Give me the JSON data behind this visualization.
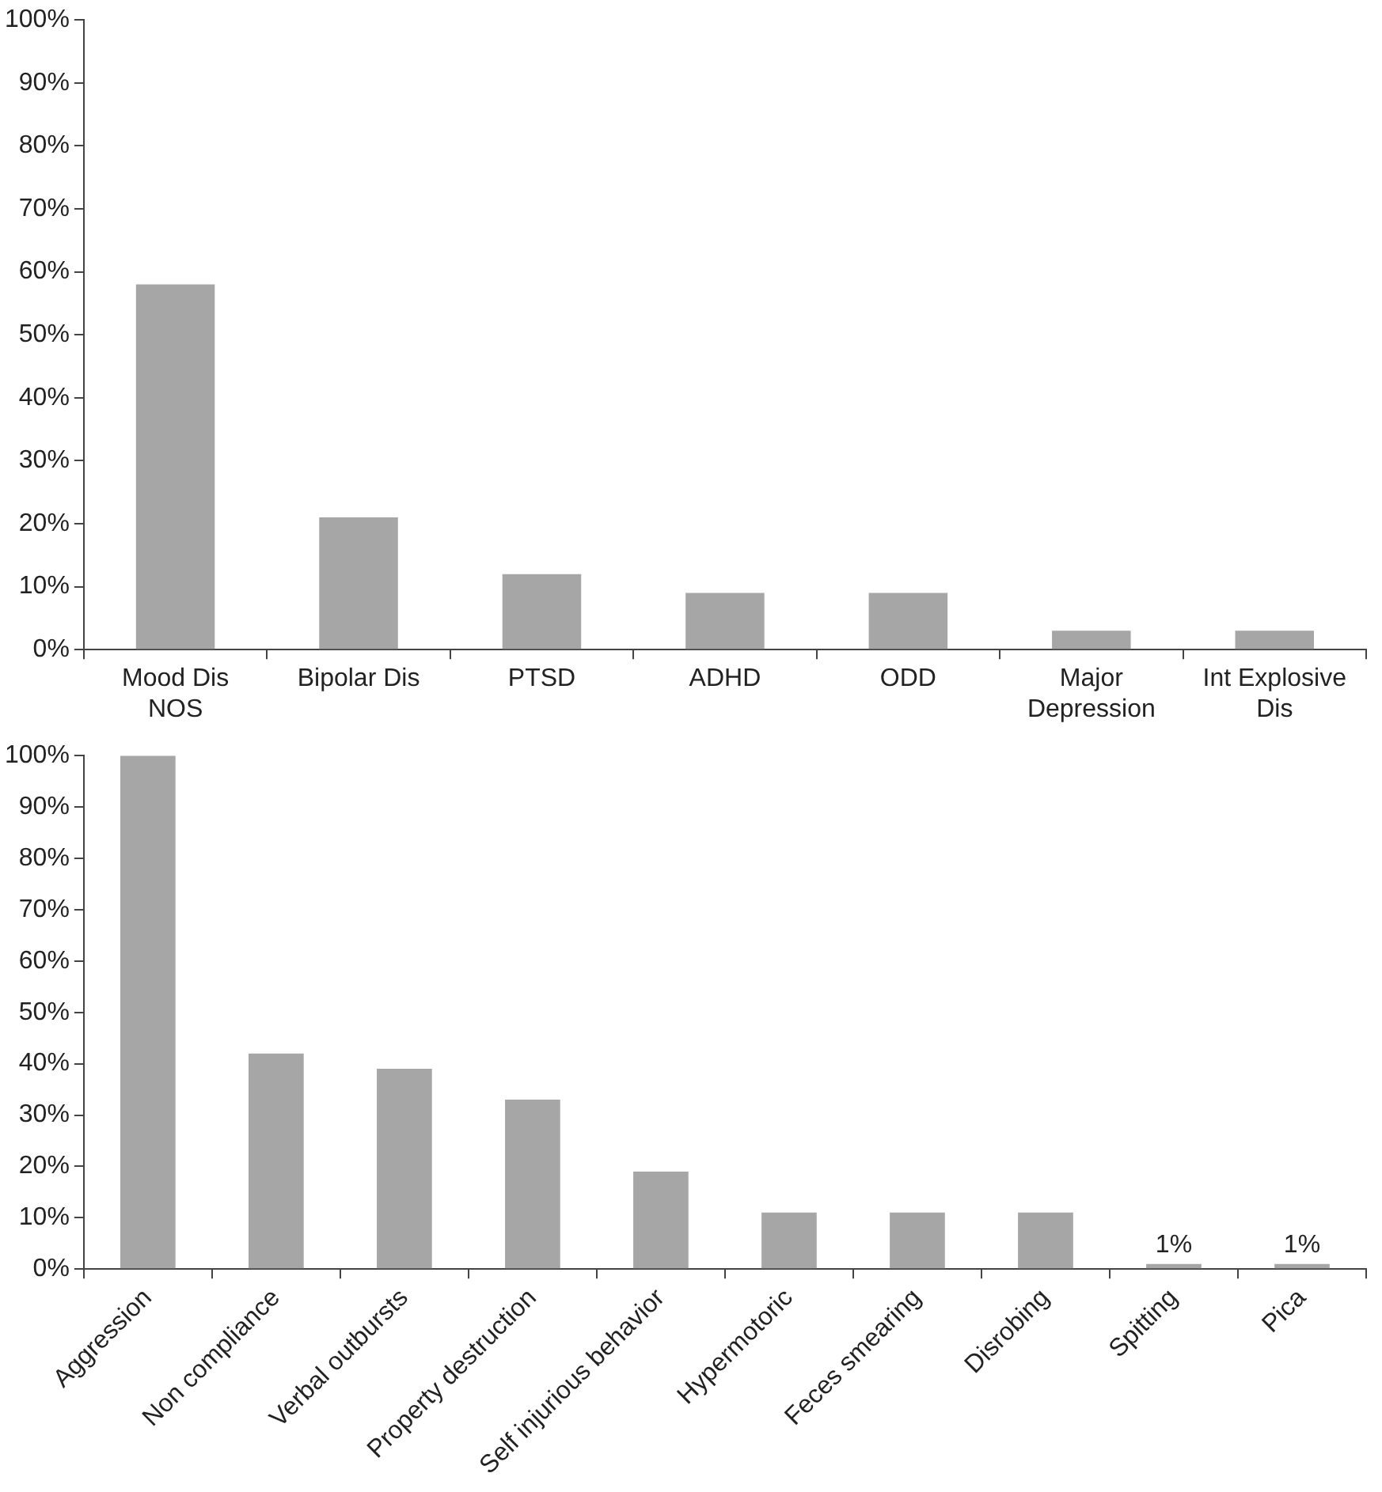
{
  "chart_data": [
    {
      "type": "bar",
      "categories": [
        "Mood Dis NOS",
        "Bipolar Dis",
        "PTSD",
        "ADHD",
        "ODD",
        "Major Depression",
        "Int Explosive Dis"
      ],
      "series": [
        {
          "color": "#a6a6a6",
          "values": [
            58,
            21,
            12,
            9,
            9,
            3,
            3
          ]
        }
      ],
      "ylim": [
        0,
        100
      ],
      "yticks": [
        {
          "value": 0,
          "label": "0%"
        },
        {
          "value": 10,
          "label": "10%"
        },
        {
          "value": 20,
          "label": "20%"
        },
        {
          "value": 30,
          "label": "30%"
        },
        {
          "value": 40,
          "label": "40%"
        },
        {
          "value": 50,
          "label": "50%"
        },
        {
          "value": 60,
          "label": "60%"
        },
        {
          "value": 70,
          "label": "70%"
        },
        {
          "value": 80,
          "label": "80%"
        },
        {
          "value": 90,
          "label": "90%"
        },
        {
          "value": 100,
          "label": "100%"
        }
      ],
      "grid": false,
      "legend": false
    },
    {
      "type": "bar",
      "categories": [
        "Aggression",
        "Non compliance",
        "Verbal outbursts",
        "Property destruction",
        "Self injurious behavior",
        "Hypermotoric",
        "Feces smearing",
        "Disrobing",
        "Spitting",
        "Pica"
      ],
      "series": [
        {
          "color": "#a6a6a6",
          "values": [
            100,
            42,
            39,
            33,
            19,
            11,
            11,
            11,
            1,
            1
          ],
          "value_labels": [
            null,
            null,
            null,
            null,
            null,
            null,
            null,
            null,
            "1%",
            "1%"
          ]
        }
      ],
      "ylim": [
        0,
        100
      ],
      "yticks": [
        {
          "value": 0,
          "label": "0%"
        },
        {
          "value": 10,
          "label": "10%"
        },
        {
          "value": 20,
          "label": "20%"
        },
        {
          "value": 30,
          "label": "30%"
        },
        {
          "value": 40,
          "label": "40%"
        },
        {
          "value": 50,
          "label": "50%"
        },
        {
          "value": 60,
          "label": "60%"
        },
        {
          "value": 70,
          "label": "70%"
        },
        {
          "value": 80,
          "label": "80%"
        },
        {
          "value": 90,
          "label": "90%"
        },
        {
          "value": 100,
          "label": "100%"
        }
      ],
      "grid": false,
      "legend": false
    }
  ]
}
